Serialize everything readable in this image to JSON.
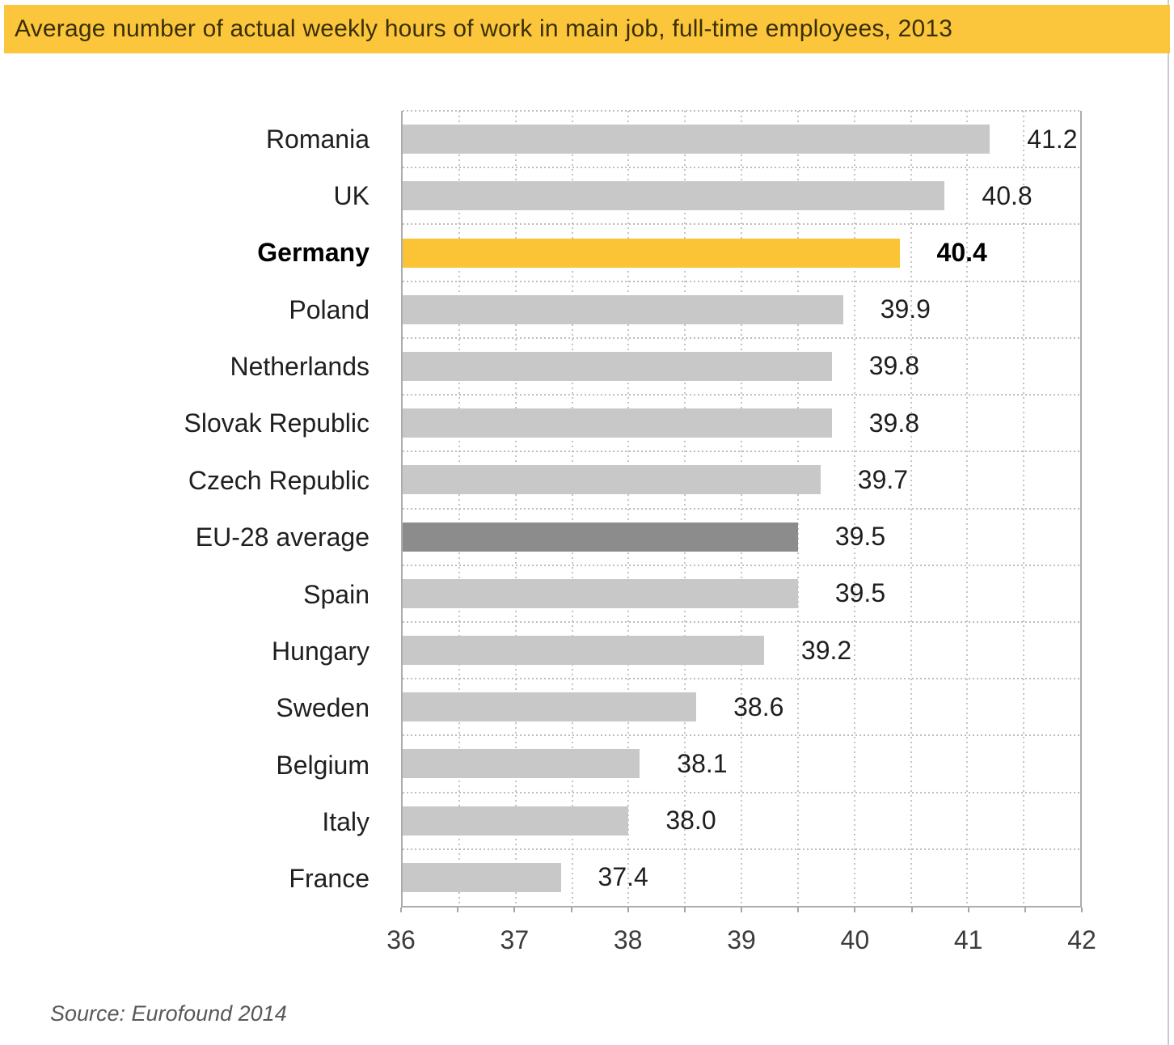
{
  "frame": {
    "background": "#FFFFFF",
    "right_border_color": "#CBCBCB"
  },
  "header": {
    "title": "Average number of actual weekly hours of work in main job, full-time employees, 2013",
    "background": "#FBC63C",
    "text_color": "#3A2F06"
  },
  "footer": {
    "source": "Source: Eurofound 2014"
  },
  "chart_data": {
    "type": "bar",
    "orientation": "horizontal",
    "title": "Average number of actual weekly hours of work in main job, full-time employees, 2013",
    "xlabel": "",
    "ylabel": "",
    "xlim": [
      36,
      42
    ],
    "x_ticks": [
      36,
      37,
      38,
      39,
      40,
      41,
      42
    ],
    "minor_tick_step": 0.5,
    "grid": {
      "vertical_step": 0.5,
      "style": "dotted",
      "row_separators": "dotted"
    },
    "legend": null,
    "bars": [
      {
        "category": "Romania",
        "value": 41.2,
        "display": "41.2",
        "role": "default",
        "emphasis": false
      },
      {
        "category": "UK",
        "value": 40.8,
        "display": "40.8",
        "role": "default",
        "emphasis": false
      },
      {
        "category": "Germany",
        "value": 40.4,
        "display": "40.4",
        "role": "highlight",
        "emphasis": true
      },
      {
        "category": "Poland",
        "value": 39.9,
        "display": "39.9",
        "role": "default",
        "emphasis": false
      },
      {
        "category": "Netherlands",
        "value": 39.8,
        "display": "39.8",
        "role": "default",
        "emphasis": false
      },
      {
        "category": "Slovak Republic",
        "value": 39.8,
        "display": "39.8",
        "role": "default",
        "emphasis": false
      },
      {
        "category": "Czech Republic",
        "value": 39.7,
        "display": "39.7",
        "role": "default",
        "emphasis": false
      },
      {
        "category": "EU-28 average",
        "value": 39.5,
        "display": "39.5",
        "role": "average",
        "emphasis": false
      },
      {
        "category": "Spain",
        "value": 39.5,
        "display": "39.5",
        "role": "default",
        "emphasis": false
      },
      {
        "category": "Hungary",
        "value": 39.2,
        "display": "39.2",
        "role": "default",
        "emphasis": false
      },
      {
        "category": "Sweden",
        "value": 38.6,
        "display": "38.6",
        "role": "default",
        "emphasis": false
      },
      {
        "category": "Belgium",
        "value": 38.1,
        "display": "38.1",
        "role": "default",
        "emphasis": false
      },
      {
        "category": "Italy",
        "value": 38.0,
        "display": "38.0",
        "role": "default",
        "emphasis": false
      },
      {
        "category": "France",
        "value": 37.4,
        "display": "37.4",
        "role": "default",
        "emphasis": false
      }
    ],
    "bar_colors": {
      "default": "#C8C8C8",
      "highlight": "#FBC437",
      "average": "#8C8C8C"
    },
    "plot_border_color": "#ACACAC",
    "gridline_color": "#C4C4C4"
  }
}
